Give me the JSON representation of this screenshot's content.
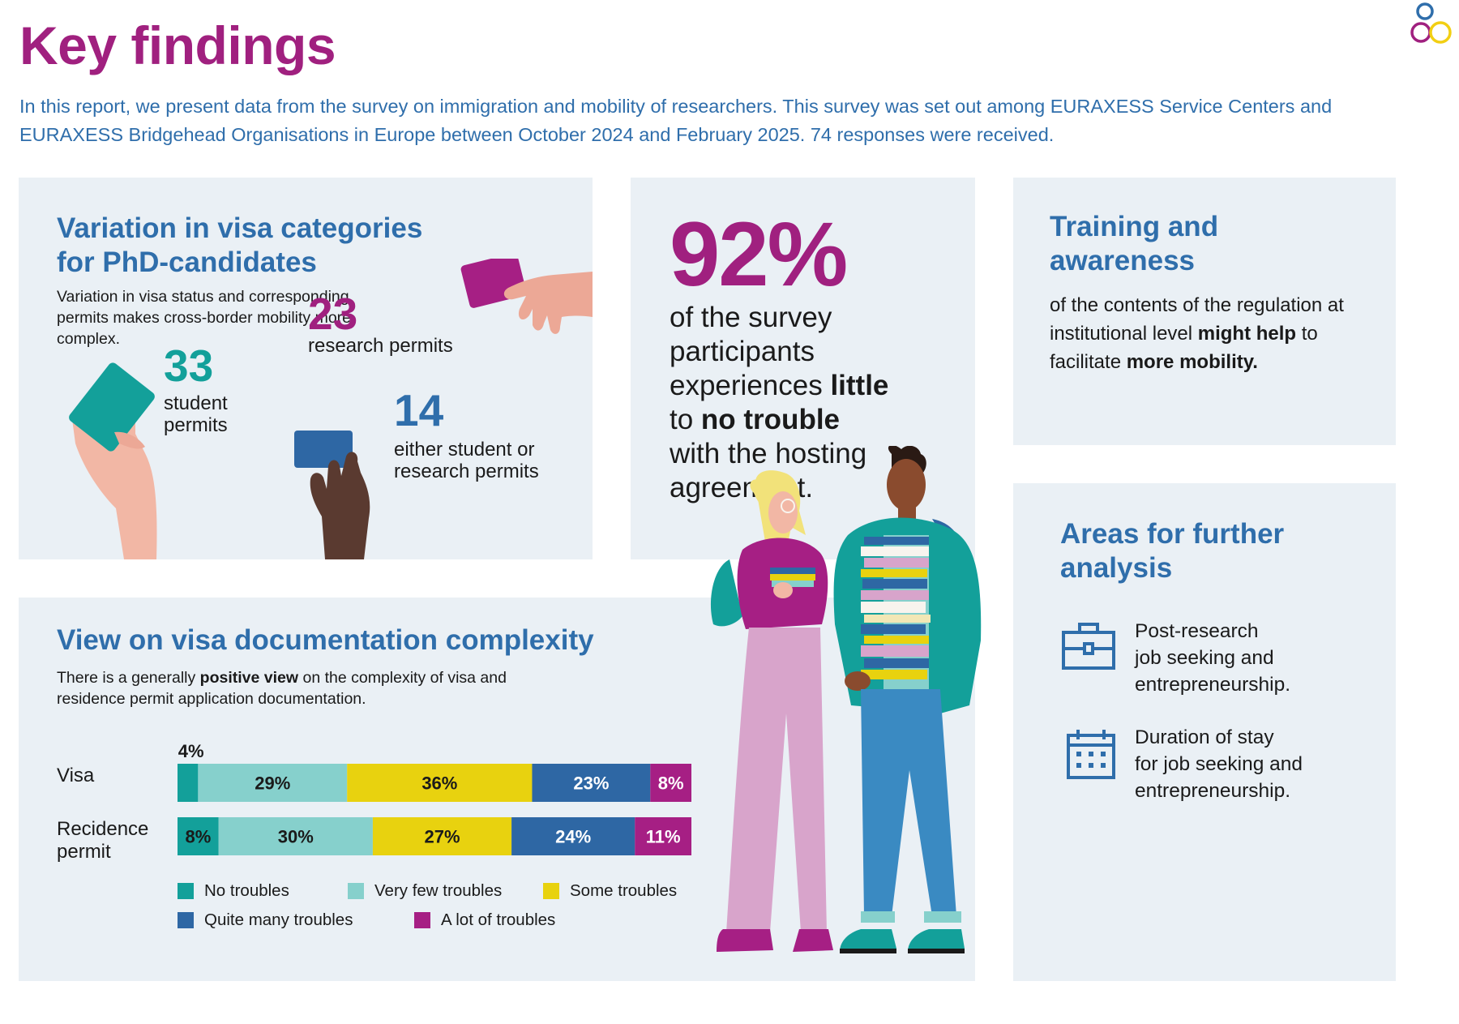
{
  "header": {
    "title": "Key findings",
    "intro": "In this report, we present data from the survey on immigration and mobility of researchers. This survey was set out among EURAXESS Service Centers and EURAXESS Bridgehead Organisations in Europe between October 2024 and February 2025. 74 responses were received."
  },
  "visa_card": {
    "heading_line1": "Variation in visa categories",
    "heading_line2": "for PhD-candidates",
    "description": "Variation in visa status and corresponding permits makes cross-border mobility more complex.",
    "stats": [
      {
        "number": "33",
        "label_line1": "student",
        "label_line2": "permits"
      },
      {
        "number": "23",
        "label_line1": "research permits",
        "label_line2": ""
      },
      {
        "number": "14",
        "label_line1": "either student or",
        "label_line2": "research permits"
      }
    ]
  },
  "trouble_card": {
    "percent": "92%",
    "line1": "of the survey",
    "line2": "participants",
    "line3_pre": "experiences ",
    "line3_bold": "little",
    "line4_pre": "to ",
    "line4_bold": "no trouble",
    "line5": "with the hosting",
    "line6": "agreement."
  },
  "training_card": {
    "heading_line1": "Training and",
    "heading_line2": "awareness",
    "text_a": "of the contents of the regulation at institutional level ",
    "text_b": "might help",
    "text_c": " to facilitate ",
    "text_d": "more mobility."
  },
  "areas_card": {
    "heading_line1": "Areas for further",
    "heading_line2": "analysis",
    "items": [
      {
        "icon": "briefcase-icon",
        "line1": "Post-research",
        "line2": "job seeking and",
        "line3": "entrepreneurship."
      },
      {
        "icon": "calendar-icon",
        "line1": "Duration of stay",
        "line2": "for job seeking and",
        "line3": "entrepreneurship."
      }
    ]
  },
  "complexity_card": {
    "heading": "View on visa documentation complexity",
    "desc_a": "There is a generally ",
    "desc_b": "positive view",
    "desc_c": " on the complexity of visa and residence permit application documentation."
  },
  "chart_data": {
    "type": "bar",
    "orientation": "horizontal",
    "stacked": true,
    "categories": [
      "Visa",
      "Recidence permit"
    ],
    "category_lines": [
      [
        "Visa"
      ],
      [
        "Recidence",
        "permit"
      ]
    ],
    "series": [
      {
        "name": "No troubles",
        "color": "#13a09a",
        "values": [
          4,
          8
        ],
        "labels": [
          "4%",
          "8%"
        ]
      },
      {
        "name": "Very few troubles",
        "color": "#86d0cc",
        "values": [
          29,
          30
        ],
        "labels": [
          "29%",
          "30%"
        ]
      },
      {
        "name": "Some troubles",
        "color": "#e8d20f",
        "values": [
          36,
          27
        ],
        "labels": [
          "36%",
          "27%"
        ]
      },
      {
        "name": "Quite many troubles",
        "color": "#2e67a4",
        "values": [
          23,
          24
        ],
        "labels": [
          "23%",
          "24%"
        ]
      },
      {
        "name": "A lot of troubles",
        "color": "#a61f84",
        "values": [
          8,
          11
        ],
        "labels": [
          "8%",
          "11%"
        ]
      }
    ],
    "xlim": [
      0,
      100
    ],
    "legend_position": "bottom"
  },
  "colors": {
    "magenta": "#a0207f",
    "blue": "#2f6eab",
    "teal": "#13a09a",
    "card_bg": "#eaf0f5"
  }
}
